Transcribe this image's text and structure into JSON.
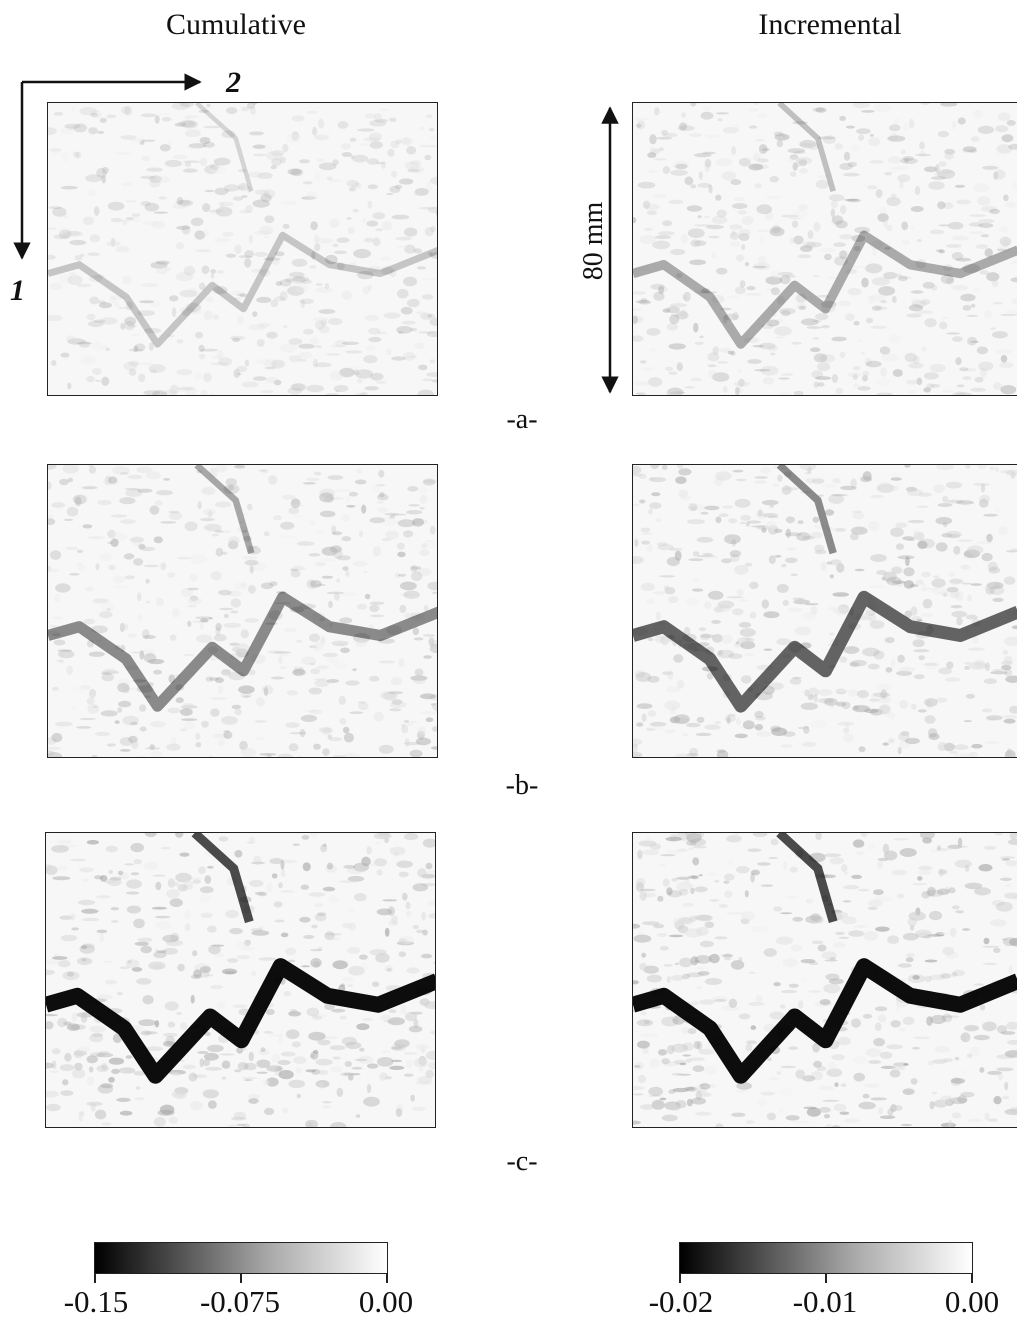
{
  "columns": {
    "left_title": "Cumulative",
    "right_title": "Incremental"
  },
  "axes": {
    "horizontal_label": "2",
    "vertical_label": "1"
  },
  "scale_bar": {
    "label": "80 mm"
  },
  "rows": [
    {
      "label": "-a-"
    },
    {
      "label": "-b-"
    },
    {
      "label": "-c-"
    }
  ],
  "colorbars": {
    "cumulative": {
      "ticks": [
        "-0.15",
        "-0.075",
        "0.00"
      ],
      "min": -0.15,
      "max": 0.0
    },
    "incremental": {
      "ticks": [
        "-0.02",
        "-0.01",
        "0.00"
      ],
      "min": -0.02,
      "max": 0.0
    }
  },
  "colors": {
    "low": "#000000",
    "high": "#ffffff",
    "frame": "#222222"
  }
}
